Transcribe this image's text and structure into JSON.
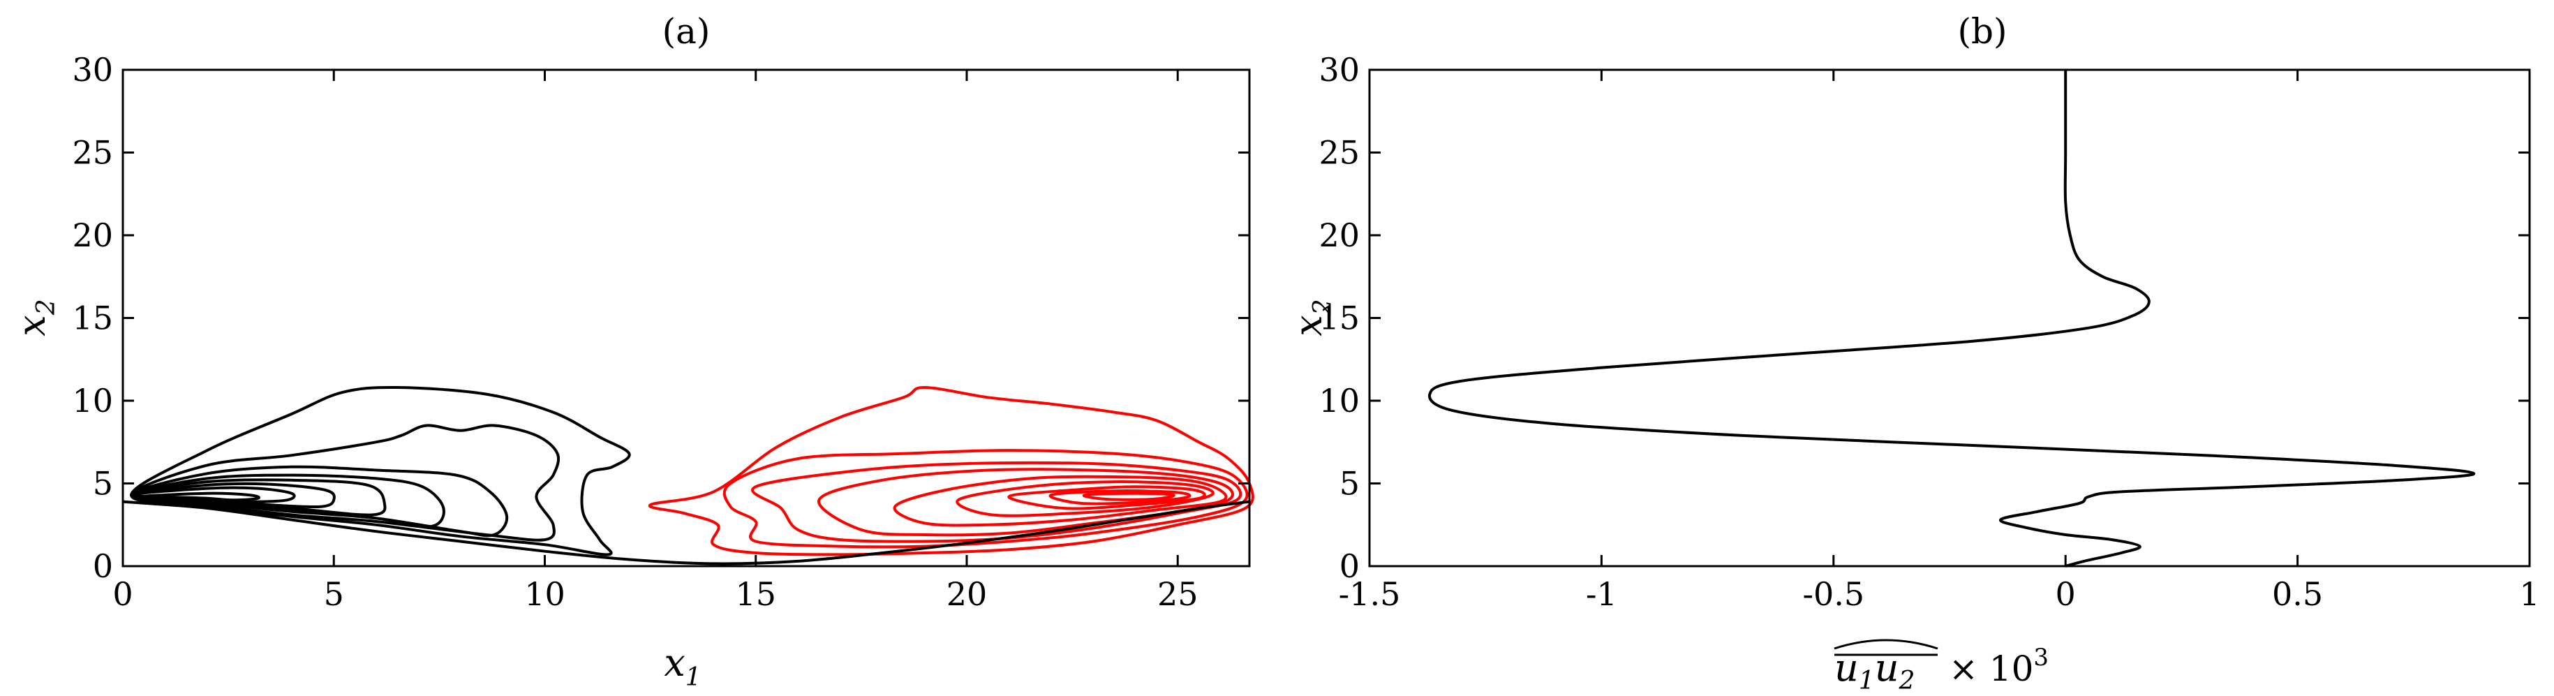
{
  "chart_data": [
    {
      "type": "contour",
      "title": "(a)",
      "xlabel": "x",
      "xlabel_sub": "1",
      "ylabel": "x",
      "ylabel_sub": "2",
      "xlim": [
        0,
        26.7
      ],
      "ylim": [
        0,
        30
      ],
      "xticks": [
        0,
        5,
        10,
        15,
        20,
        25
      ],
      "yticks": [
        0,
        5,
        10,
        15,
        20,
        25,
        30
      ],
      "grid": false,
      "colors": {
        "negative": "#000000",
        "positive": "#ff0000"
      },
      "contours": [
        {
          "sign": "negative",
          "points": [
            [
              0.2,
              4.3
            ],
            [
              2.0,
              7.0
            ],
            [
              4.0,
              9.2
            ],
            [
              5.2,
              10.5
            ],
            [
              6.5,
              10.8
            ],
            [
              8.6,
              10.4
            ],
            [
              10.2,
              9.3
            ],
            [
              11.3,
              7.8
            ],
            [
              12.0,
              6.8
            ],
            [
              11.6,
              6.0
            ],
            [
              11.0,
              5.5
            ],
            [
              10.9,
              3.3
            ],
            [
              11.3,
              1.6
            ],
            [
              11.5,
              0.7
            ],
            [
              10.0,
              1.3
            ],
            [
              8.0,
              1.8
            ],
            [
              6.0,
              2.5
            ],
            [
              4.0,
              3.0
            ],
            [
              2.0,
              3.6
            ],
            [
              0.2,
              4.3
            ]
          ]
        },
        {
          "sign": "negative",
          "points": [
            [
              0.2,
              4.3
            ],
            [
              2.0,
              6.1
            ],
            [
              4.0,
              6.7
            ],
            [
              6.0,
              7.5
            ],
            [
              6.6,
              7.9
            ],
            [
              7.2,
              8.5
            ],
            [
              8.0,
              8.2
            ],
            [
              8.8,
              8.5
            ],
            [
              9.8,
              7.9
            ],
            [
              10.3,
              6.8
            ],
            [
              10.2,
              5.5
            ],
            [
              9.8,
              4.2
            ],
            [
              10.2,
              2.5
            ],
            [
              10.0,
              1.6
            ],
            [
              8.6,
              1.9
            ],
            [
              6.0,
              2.7
            ],
            [
              4.0,
              3.1
            ],
            [
              2.0,
              3.7
            ],
            [
              0.2,
              4.3
            ]
          ]
        },
        {
          "sign": "negative",
          "points": [
            [
              0.2,
              4.3
            ],
            [
              2.0,
              5.6
            ],
            [
              4.0,
              6.0
            ],
            [
              6.0,
              5.8
            ],
            [
              7.9,
              5.5
            ],
            [
              8.7,
              4.5
            ],
            [
              9.1,
              3.0
            ],
            [
              8.8,
              1.9
            ],
            [
              8.0,
              2.1
            ],
            [
              6.0,
              2.9
            ],
            [
              4.0,
              3.3
            ],
            [
              2.0,
              3.8
            ],
            [
              0.2,
              4.3
            ]
          ]
        },
        {
          "sign": "negative",
          "points": [
            [
              0.2,
              4.3
            ],
            [
              2.0,
              5.3
            ],
            [
              4.0,
              5.5
            ],
            [
              6.0,
              5.3
            ],
            [
              7.1,
              4.8
            ],
            [
              7.6,
              3.5
            ],
            [
              7.3,
              2.4
            ],
            [
              6.0,
              2.9
            ],
            [
              4.0,
              3.4
            ],
            [
              2.0,
              3.9
            ],
            [
              0.2,
              4.3
            ]
          ]
        },
        {
          "sign": "negative",
          "points": [
            [
              0.2,
              4.3
            ],
            [
              2.0,
              5.1
            ],
            [
              4.0,
              5.2
            ],
            [
              5.8,
              4.9
            ],
            [
              6.2,
              3.8
            ],
            [
              5.9,
              3.1
            ],
            [
              4.0,
              3.5
            ],
            [
              2.0,
              3.9
            ],
            [
              0.2,
              4.3
            ]
          ]
        },
        {
          "sign": "negative",
          "points": [
            [
              0.2,
              4.3
            ],
            [
              2.0,
              4.9
            ],
            [
              3.5,
              4.95
            ],
            [
              4.8,
              4.6
            ],
            [
              5.0,
              4.0
            ],
            [
              4.7,
              3.6
            ],
            [
              3.5,
              3.7
            ],
            [
              2.0,
              4.0
            ],
            [
              0.2,
              4.3
            ]
          ]
        },
        {
          "sign": "negative",
          "points": [
            [
              0.2,
              4.3
            ],
            [
              2.0,
              4.7
            ],
            [
              3.2,
              4.7
            ],
            [
              4.0,
              4.4
            ],
            [
              3.9,
              4.0
            ],
            [
              3.0,
              3.9
            ],
            [
              2.0,
              4.1
            ],
            [
              0.2,
              4.3
            ]
          ]
        },
        {
          "sign": "negative",
          "points": [
            [
              0.4,
              4.2
            ],
            [
              2.0,
              4.4
            ],
            [
              3.0,
              4.3
            ],
            [
              3.2,
              4.1
            ],
            [
              2.6,
              4.0
            ],
            [
              1.5,
              4.1
            ],
            [
              0.4,
              4.2
            ]
          ]
        },
        {
          "sign": "positive",
          "points": [
            [
              12.5,
              3.7
            ],
            [
              14.0,
              4.5
            ],
            [
              15.5,
              7.2
            ],
            [
              17.0,
              9.0
            ],
            [
              18.5,
              10.2
            ],
            [
              19.0,
              10.8
            ],
            [
              20.5,
              10.2
            ],
            [
              22.0,
              9.8
            ],
            [
              23.5,
              9.3
            ],
            [
              24.5,
              8.8
            ],
            [
              25.5,
              7.5
            ],
            [
              26.2,
              6.5
            ],
            [
              26.7,
              5.0
            ],
            [
              26.6,
              3.5
            ],
            [
              25.0,
              2.5
            ],
            [
              23.0,
              1.5
            ],
            [
              21.0,
              1.0
            ],
            [
              19.0,
              0.8
            ],
            [
              17.0,
              0.7
            ],
            [
              15.0,
              0.8
            ],
            [
              14.0,
              1.3
            ],
            [
              14.1,
              2.5
            ],
            [
              13.3,
              3.2
            ],
            [
              12.5,
              3.7
            ]
          ]
        },
        {
          "sign": "positive",
          "points": [
            [
              14.4,
              5.0
            ],
            [
              16.0,
              6.5
            ],
            [
              18.5,
              6.8
            ],
            [
              21.0,
              7.0
            ],
            [
              23.5,
              6.8
            ],
            [
              25.2,
              6.3
            ],
            [
              26.3,
              5.5
            ],
            [
              26.6,
              4.0
            ],
            [
              25.5,
              3.0
            ],
            [
              23.0,
              2.0
            ],
            [
              21.0,
              1.5
            ],
            [
              19.0,
              1.2
            ],
            [
              17.0,
              1.2
            ],
            [
              15.0,
              1.5
            ],
            [
              15.0,
              2.7
            ],
            [
              14.4,
              3.6
            ],
            [
              14.4,
              5.0
            ]
          ]
        },
        {
          "sign": "positive",
          "points": [
            [
              15.0,
              4.8
            ],
            [
              17.5,
              5.8
            ],
            [
              20.0,
              6.2
            ],
            [
              23.0,
              6.2
            ],
            [
              25.0,
              5.8
            ],
            [
              26.2,
              5.2
            ],
            [
              26.4,
              4.0
            ],
            [
              25.0,
              3.2
            ],
            [
              23.0,
              2.3
            ],
            [
              21.0,
              1.7
            ],
            [
              19.0,
              1.5
            ],
            [
              17.0,
              1.6
            ],
            [
              16.0,
              2.2
            ],
            [
              15.6,
              3.5
            ],
            [
              15.0,
              4.8
            ]
          ]
        },
        {
          "sign": "positive",
          "points": [
            [
              16.5,
              4.0
            ],
            [
              18.0,
              5.2
            ],
            [
              20.5,
              5.8
            ],
            [
              23.0,
              5.8
            ],
            [
              25.0,
              5.5
            ],
            [
              26.1,
              4.9
            ],
            [
              26.2,
              4.0
            ],
            [
              25.0,
              3.3
            ],
            [
              23.0,
              2.6
            ],
            [
              21.0,
              2.0
            ],
            [
              19.0,
              1.9
            ],
            [
              17.5,
              2.2
            ],
            [
              16.5,
              4.0
            ]
          ]
        },
        {
          "sign": "positive",
          "points": [
            [
              18.3,
              3.6
            ],
            [
              19.5,
              4.6
            ],
            [
              21.5,
              5.3
            ],
            [
              23.5,
              5.4
            ],
            [
              25.2,
              5.2
            ],
            [
              26.0,
              4.6
            ],
            [
              26.0,
              3.9
            ],
            [
              24.5,
              3.4
            ],
            [
              22.5,
              2.8
            ],
            [
              20.5,
              2.5
            ],
            [
              19.0,
              2.6
            ],
            [
              18.3,
              3.6
            ]
          ]
        },
        {
          "sign": "positive",
          "points": [
            [
              19.8,
              4.0
            ],
            [
              21.5,
              4.8
            ],
            [
              23.5,
              5.1
            ],
            [
              25.3,
              4.9
            ],
            [
              25.8,
              4.3
            ],
            [
              24.5,
              3.6
            ],
            [
              22.5,
              3.2
            ],
            [
              20.6,
              3.1
            ],
            [
              19.8,
              4.0
            ]
          ]
        },
        {
          "sign": "positive",
          "points": [
            [
              21.0,
              4.2
            ],
            [
              22.5,
              4.6
            ],
            [
              24.0,
              4.8
            ],
            [
              25.4,
              4.6
            ],
            [
              25.5,
              4.1
            ],
            [
              24.0,
              3.7
            ],
            [
              22.3,
              3.5
            ],
            [
              21.0,
              4.2
            ]
          ]
        },
        {
          "sign": "positive",
          "points": [
            [
              22.0,
              4.3
            ],
            [
              23.5,
              4.55
            ],
            [
              25.0,
              4.45
            ],
            [
              25.2,
              4.15
            ],
            [
              24.0,
              3.85
            ],
            [
              22.7,
              3.8
            ],
            [
              22.0,
              4.3
            ]
          ]
        },
        {
          "sign": "positive",
          "points": [
            [
              22.8,
              4.3
            ],
            [
              24.0,
              4.4
            ],
            [
              24.9,
              4.3
            ],
            [
              24.4,
              4.05
            ],
            [
              23.3,
              4.05
            ],
            [
              22.8,
              4.3
            ]
          ]
        }
      ],
      "boundary": [
        [
          0,
          3.9
        ],
        [
          2,
          3.5
        ],
        [
          4,
          2.8
        ],
        [
          6,
          2.1
        ],
        [
          8,
          1.5
        ],
        [
          10,
          0.9
        ],
        [
          12,
          0.4
        ],
        [
          14,
          0.15
        ],
        [
          16,
          0.3
        ],
        [
          18,
          0.8
        ],
        [
          20,
          1.4
        ],
        [
          22,
          2.1
        ],
        [
          24,
          2.9
        ],
        [
          25.5,
          3.5
        ],
        [
          26.7,
          3.9
        ]
      ]
    },
    {
      "type": "line",
      "title": "(b)",
      "xlabel": "u",
      "xlabel_subs": [
        "1",
        "2"
      ],
      "xlabel_suffix": "× 10",
      "xlabel_exponent": "3",
      "ylabel": "x",
      "ylabel_sub": "2",
      "xlim": [
        -1.5,
        1
      ],
      "ylim": [
        0,
        30
      ],
      "xticks": [
        -1.5,
        -1,
        -0.5,
        0,
        0.5,
        1
      ],
      "xtick_labels": [
        "-1.5",
        "-1",
        "-0.5",
        "0",
        "0.5",
        "1"
      ],
      "yticks": [
        0,
        5,
        10,
        15,
        20,
        25,
        30
      ],
      "grid": false,
      "series": [
        {
          "color": "#000000",
          "points": [
            [
              0,
              0
            ],
            [
              0.04,
              0.3
            ],
            [
              0.12,
              0.8
            ],
            [
              0.16,
              1.2
            ],
            [
              0.1,
              1.6
            ],
            [
              0.0,
              1.9
            ],
            [
              -0.08,
              2.3
            ],
            [
              -0.14,
              2.8
            ],
            [
              -0.06,
              3.3
            ],
            [
              0.03,
              3.8
            ],
            [
              0.05,
              4.2
            ],
            [
              0.12,
              4.5
            ],
            [
              0.4,
              4.8
            ],
            [
              0.72,
              5.2
            ],
            [
              0.88,
              5.6
            ],
            [
              0.7,
              6.1
            ],
            [
              0.3,
              6.7
            ],
            [
              -0.2,
              7.3
            ],
            [
              -0.7,
              7.9
            ],
            [
              -1.1,
              8.6
            ],
            [
              -1.32,
              9.4
            ],
            [
              -1.37,
              10.4
            ],
            [
              -1.3,
              11.2
            ],
            [
              -1.0,
              12.0
            ],
            [
              -0.6,
              12.8
            ],
            [
              -0.2,
              13.6
            ],
            [
              0.05,
              14.4
            ],
            [
              0.15,
              15.2
            ],
            [
              0.18,
              16.0
            ],
            [
              0.15,
              16.8
            ],
            [
              0.08,
              17.5
            ],
            [
              0.03,
              18.5
            ],
            [
              0.01,
              20.0
            ],
            [
              0.0,
              22.0
            ],
            [
              0.0,
              25.0
            ],
            [
              0.0,
              30.0
            ]
          ]
        }
      ]
    }
  ]
}
